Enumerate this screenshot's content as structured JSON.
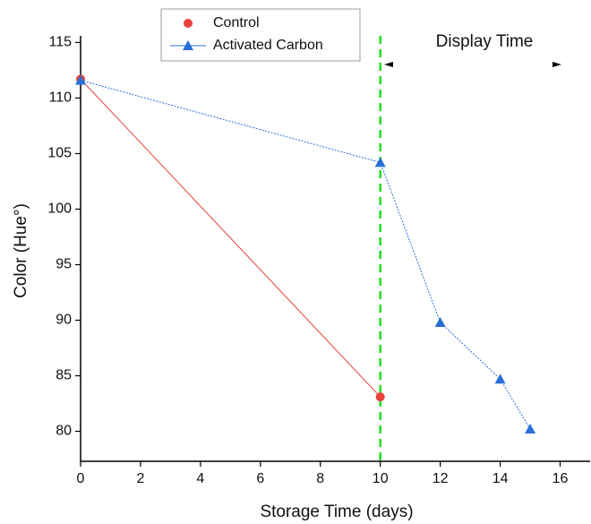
{
  "chart_data": {
    "type": "line",
    "x_label": "Storage Time (days)",
    "y_label": "Color (Hue°)",
    "xlim": [
      0,
      17
    ],
    "xticks": [
      0,
      2,
      4,
      6,
      8,
      10,
      12,
      14,
      16
    ],
    "ylim": [
      77.3,
      115.6
    ],
    "yticks": [
      80,
      85,
      90,
      95,
      100,
      105,
      110,
      115
    ],
    "series": [
      {
        "name": "Control",
        "color": "#e8413c",
        "marker": "circle",
        "x": [
          0,
          10
        ],
        "values": [
          111.7,
          83.1
        ]
      },
      {
        "name": "Activated Carbon",
        "color": "#2a6fd6",
        "marker": "triangle",
        "x": [
          0,
          10,
          12,
          14,
          15
        ],
        "values": [
          111.6,
          104.2,
          89.8,
          84.7,
          80.2
        ]
      }
    ],
    "vline": {
      "x": 10,
      "color": "#22dd22"
    },
    "annotation": "Display Time"
  }
}
